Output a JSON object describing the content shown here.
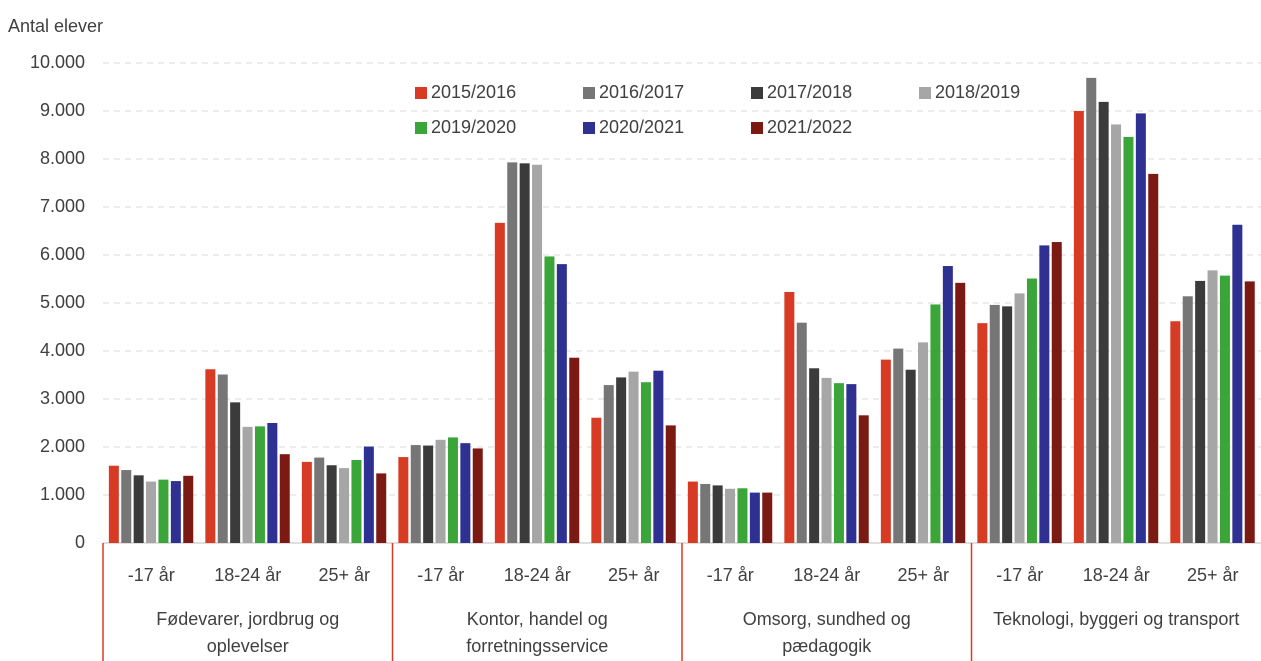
{
  "chart_data": {
    "type": "bar",
    "y_label": "Antal elever",
    "groups": [
      "Fødevarer, jordbrug og oplevelser",
      "Kontor, handel og forretningsservice",
      "Omsorg, sundhed og pædagogik",
      "Teknologi, byggeri og transport"
    ],
    "categories": [
      "-17 år",
      "18-24 år",
      "25+ år",
      "-17 år",
      "18-24 år",
      "25+ år",
      "-17 år",
      "18-24 år",
      "25+ år",
      "-17 år",
      "18-24 år",
      "25+ år"
    ],
    "series": [
      {
        "name": "2015/2016",
        "color": "#d83b24",
        "values": [
          1610,
          3620,
          1690,
          1790,
          6670,
          2610,
          1280,
          5230,
          3820,
          4580,
          9000,
          4620
        ]
      },
      {
        "name": "2016/2017",
        "color": "#767676",
        "values": [
          1520,
          3510,
          1780,
          2040,
          7930,
          3290,
          1230,
          4590,
          4050,
          4960,
          9690,
          5140
        ]
      },
      {
        "name": "2017/2018",
        "color": "#3b3b3b",
        "values": [
          1410,
          2930,
          1620,
          2030,
          7910,
          3450,
          1200,
          3640,
          3610,
          4930,
          9190,
          5460
        ]
      },
      {
        "name": "2018/2019",
        "color": "#a6a6a6",
        "values": [
          1280,
          2420,
          1560,
          2150,
          7880,
          3570,
          1130,
          3440,
          4180,
          5200,
          8720,
          5680
        ]
      },
      {
        "name": "2019/2020",
        "color": "#3aa63a",
        "values": [
          1320,
          2430,
          1730,
          2200,
          5970,
          3350,
          1140,
          3330,
          4970,
          5510,
          8460,
          5570
        ]
      },
      {
        "name": "2020/2021",
        "color": "#2e3192",
        "values": [
          1290,
          2500,
          2010,
          2080,
          5810,
          3590,
          1050,
          3310,
          5770,
          6200,
          8950,
          6630
        ]
      },
      {
        "name": "2021/2022",
        "color": "#7b1a12",
        "values": [
          1400,
          1850,
          1450,
          1970,
          3860,
          2450,
          1050,
          2660,
          5420,
          6270,
          7690,
          5450
        ]
      }
    ],
    "ylim": [
      0,
      10000
    ],
    "yticks": [
      0,
      {
        "value": 1000,
        "label": "1.000"
      },
      {
        "value": 2000,
        "label": "2.000"
      },
      {
        "value": 3000,
        "label": "3.000"
      },
      {
        "value": 4000,
        "label": "4.000"
      },
      {
        "value": 5000,
        "label": "5.000"
      },
      {
        "value": 6000,
        "label": "6.000"
      },
      {
        "value": 7000,
        "label": "7.000"
      },
      {
        "value": 8000,
        "label": "8.000"
      },
      {
        "value": 9000,
        "label": "9.000"
      },
      {
        "value": 10000,
        "label": "10.000"
      }
    ],
    "grid": true
  }
}
